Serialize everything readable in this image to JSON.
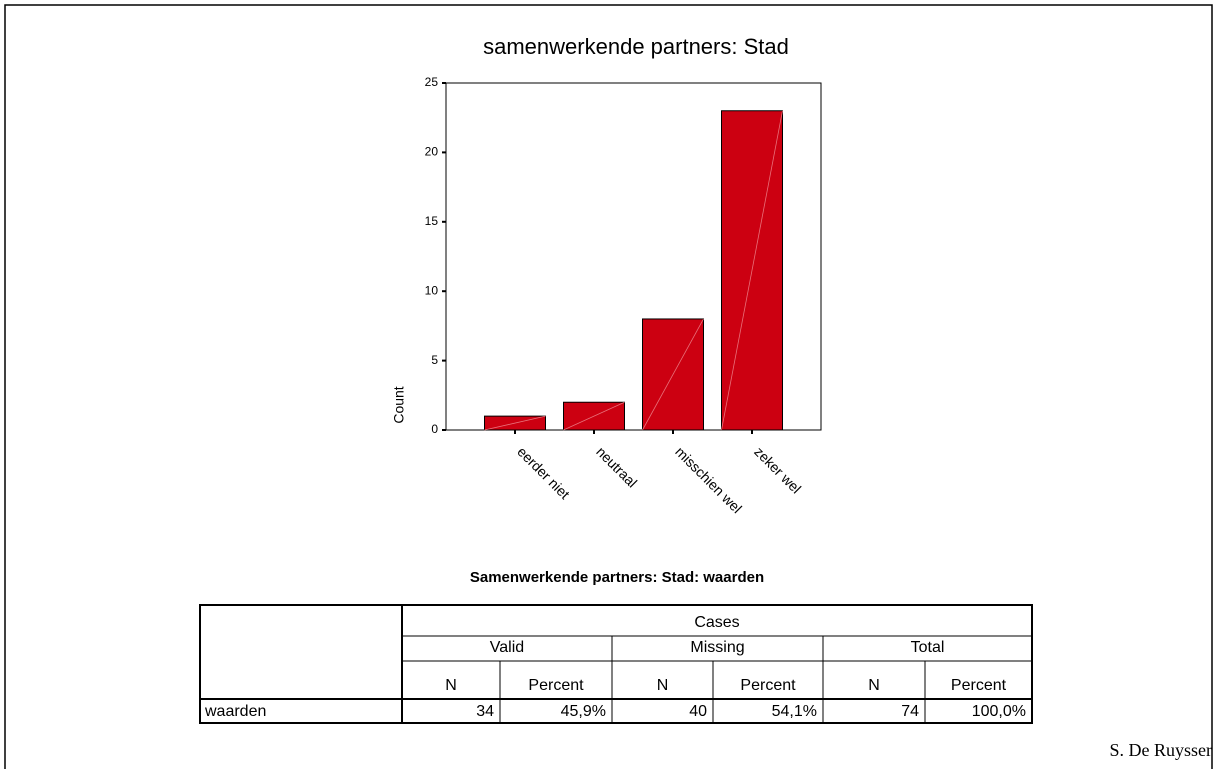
{
  "chart_data": {
    "type": "bar",
    "title": "samenwerkende partners: Stad",
    "y_label": "Count",
    "categories": [
      "eerder niet",
      "neutraal",
      "misschien wel",
      "zeker wel"
    ],
    "values": [
      1,
      2,
      8,
      23
    ],
    "color": "#cc0011",
    "ylim": [
      0,
      25
    ],
    "yticks": [
      0,
      5,
      10,
      15,
      20,
      25
    ]
  },
  "table": {
    "title": "Samenwerkende partners: Stad: waarden",
    "header": {
      "group": "Cases",
      "columns": [
        "Valid",
        "Missing",
        "Total"
      ],
      "subcolumns": [
        "N",
        "Percent",
        "N",
        "Percent",
        "N",
        "Percent"
      ]
    },
    "rows": [
      [
        "waarden",
        "34",
        "45,9%",
        "40",
        "54,1%",
        "74",
        "100,0%"
      ]
    ]
  },
  "footer": "S. De Ruysser"
}
